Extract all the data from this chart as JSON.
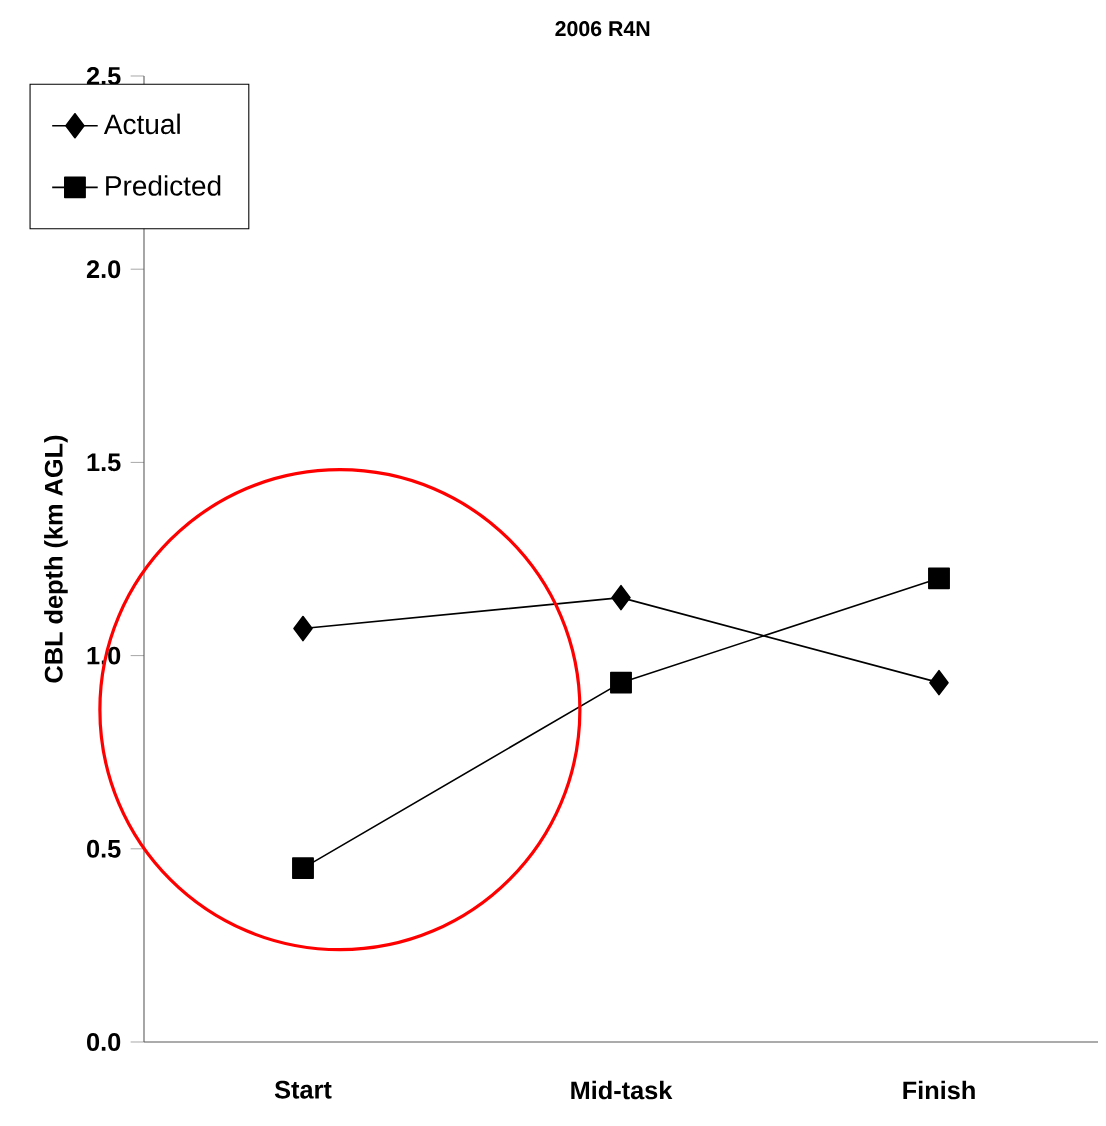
{
  "chart_data": {
    "type": "line",
    "title": "2006 R4N",
    "ylabel": "CBL depth (km AGL)",
    "categories": [
      "Start",
      "Mid-task",
      "Finish"
    ],
    "series": [
      {
        "name": "Actual",
        "color": "#000000",
        "marker": "diamond",
        "values": [
          1.07,
          1.15,
          0.93
        ]
      },
      {
        "name": "Predicted",
        "color": "#000000",
        "marker": "square",
        "values": [
          0.45,
          0.93,
          1.2
        ]
      }
    ],
    "ylim": [
      0,
      2.5
    ],
    "yticks": [
      {
        "value": 0,
        "label": "0.0"
      },
      {
        "value": 0.5,
        "label": "0.5"
      },
      {
        "value": 1,
        "label": "1.0"
      },
      {
        "value": 1.5,
        "label": "1.5"
      },
      {
        "value": 2,
        "label": "2.0"
      },
      {
        "value": 2.5,
        "label": "2.5"
      }
    ],
    "grid": false,
    "legend": "top left",
    "line_style": "solid"
  }
}
